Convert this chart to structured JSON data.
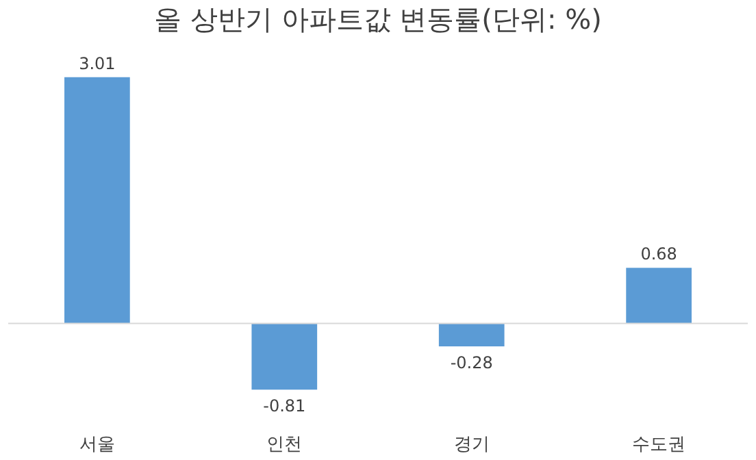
{
  "chart_data": {
    "type": "bar",
    "title": "올 상반기 아파트값 변동률(단위: %)",
    "categories": [
      "서울",
      "인천",
      "경기",
      "수도권"
    ],
    "values": [
      3.01,
      -0.81,
      -0.28,
      0.68
    ],
    "color": "#5b9bd5",
    "data_labels": true,
    "grid": false
  }
}
